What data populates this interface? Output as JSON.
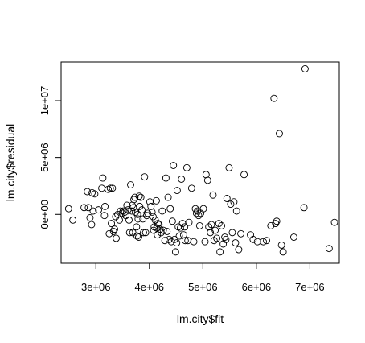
{
  "chart_data": {
    "type": "scatter",
    "xlabel": "lm.city$fit",
    "ylabel": "lm.city$residual",
    "xlim": [
      2350000,
      7550000
    ],
    "ylim": [
      -4300000,
      13400000
    ],
    "x_ticks": [
      3000000,
      4000000,
      5000000,
      6000000,
      7000000
    ],
    "x_tick_labels": [
      "3e+06",
      "4e+06",
      "5e+06",
      "6e+06",
      "7e+06"
    ],
    "y_ticks": [
      0,
      5000000,
      10000000
    ],
    "y_tick_labels": [
      "0e+00",
      "5e+06",
      "1e+07"
    ],
    "marker": "open-circle",
    "color": "#000000",
    "points": [
      [
        2490000,
        500000
      ],
      [
        2570000,
        -500000
      ],
      [
        2780000,
        600000
      ],
      [
        2840000,
        2000000
      ],
      [
        2860000,
        600000
      ],
      [
        2890000,
        -300000
      ],
      [
        2930000,
        1900000
      ],
      [
        2950000,
        300000
      ],
      [
        2980000,
        1800000
      ],
      [
        2920000,
        -900000
      ],
      [
        3050000,
        400000
      ],
      [
        3110000,
        2300000
      ],
      [
        3130000,
        3200000
      ],
      [
        3170000,
        700000
      ],
      [
        3160000,
        -100000
      ],
      [
        3230000,
        2200000
      ],
      [
        3250000,
        -1700000
      ],
      [
        3270000,
        2300000
      ],
      [
        3290000,
        -800000
      ],
      [
        3310000,
        2300000
      ],
      [
        3350000,
        -1300000
      ],
      [
        3370000,
        -200000
      ],
      [
        3330000,
        -1500000
      ],
      [
        3380000,
        -2100000
      ],
      [
        3410000,
        0
      ],
      [
        3440000,
        -500000
      ],
      [
        3460000,
        300000
      ],
      [
        3490000,
        100000
      ],
      [
        3510000,
        300000
      ],
      [
        3540000,
        200000
      ],
      [
        3560000,
        -100000
      ],
      [
        3580000,
        800000
      ],
      [
        3600000,
        400000
      ],
      [
        3620000,
        -500000
      ],
      [
        3630000,
        -1600000
      ],
      [
        3650000,
        2600000
      ],
      [
        3670000,
        300000
      ],
      [
        3680000,
        800000
      ],
      [
        3690000,
        -1600000
      ],
      [
        3700000,
        600000
      ],
      [
        3710000,
        1300000
      ],
      [
        3730000,
        1500000
      ],
      [
        3740000,
        200000
      ],
      [
        3760000,
        -1100000
      ],
      [
        3770000,
        -1900000
      ],
      [
        3780000,
        0
      ],
      [
        3790000,
        -400000
      ],
      [
        3800000,
        -2000000
      ],
      [
        3810000,
        1600000
      ],
      [
        3820000,
        700000
      ],
      [
        3840000,
        1500000
      ],
      [
        3860000,
        400000
      ],
      [
        3880000,
        -400000
      ],
      [
        3890000,
        -1600000
      ],
      [
        3910000,
        3300000
      ],
      [
        3930000,
        -1600000
      ],
      [
        3950000,
        -100000
      ],
      [
        3970000,
        100000
      ],
      [
        4010000,
        1100000
      ],
      [
        4030000,
        700000
      ],
      [
        4050000,
        200000
      ],
      [
        4070000,
        -200000
      ],
      [
        4080000,
        -1400000
      ],
      [
        4090000,
        -1100000
      ],
      [
        4110000,
        -500000
      ],
      [
        4130000,
        1200000
      ],
      [
        4140000,
        -1200000
      ],
      [
        4150000,
        -1800000
      ],
      [
        4160000,
        -800000
      ],
      [
        4180000,
        -900000
      ],
      [
        4200000,
        -1300000
      ],
      [
        4220000,
        -1600000
      ],
      [
        4240000,
        300000
      ],
      [
        4260000,
        -1400000
      ],
      [
        4290000,
        -2300000
      ],
      [
        4310000,
        3200000
      ],
      [
        4330000,
        -1500000
      ],
      [
        4350000,
        1500000
      ],
      [
        4370000,
        -2200000
      ],
      [
        4390000,
        500000
      ],
      [
        4410000,
        -2400000
      ],
      [
        4430000,
        -600000
      ],
      [
        4450000,
        4300000
      ],
      [
        4470000,
        -2200000
      ],
      [
        4490000,
        -3300000
      ],
      [
        4510000,
        -2500000
      ],
      [
        4520000,
        2100000
      ],
      [
        4540000,
        -1100000
      ],
      [
        4560000,
        -1900000
      ],
      [
        4580000,
        -1200000
      ],
      [
        4600000,
        3100000
      ],
      [
        4620000,
        -800000
      ],
      [
        4640000,
        -1800000
      ],
      [
        4660000,
        -1100000
      ],
      [
        4670000,
        -2300000
      ],
      [
        4700000,
        4100000
      ],
      [
        4720000,
        -2300000
      ],
      [
        4740000,
        -700000
      ],
      [
        4790000,
        2300000
      ],
      [
        4830000,
        -2400000
      ],
      [
        4860000,
        500000
      ],
      [
        4880000,
        100000
      ],
      [
        4900000,
        300000
      ],
      [
        4920000,
        -100000
      ],
      [
        4940000,
        -1000000
      ],
      [
        4960000,
        100000
      ],
      [
        5010000,
        500000
      ],
      [
        5040000,
        -2400000
      ],
      [
        5060000,
        3500000
      ],
      [
        5090000,
        3000000
      ],
      [
        5110000,
        -1100000
      ],
      [
        5140000,
        -1600000
      ],
      [
        5160000,
        -900000
      ],
      [
        5190000,
        1700000
      ],
      [
        5210000,
        -2300000
      ],
      [
        5230000,
        -1400000
      ],
      [
        5260000,
        -2100000
      ],
      [
        5300000,
        -800000
      ],
      [
        5320000,
        -3300000
      ],
      [
        5350000,
        -1000000
      ],
      [
        5380000,
        -2600000
      ],
      [
        5410000,
        -2000000
      ],
      [
        5430000,
        -2200000
      ],
      [
        5450000,
        1400000
      ],
      [
        5490000,
        4100000
      ],
      [
        5520000,
        900000
      ],
      [
        5550000,
        -1600000
      ],
      [
        5580000,
        1100000
      ],
      [
        5610000,
        -2500000
      ],
      [
        5630000,
        300000
      ],
      [
        5670000,
        -3100000
      ],
      [
        5710000,
        -1700000
      ],
      [
        5770000,
        3500000
      ],
      [
        5890000,
        -1800000
      ],
      [
        5940000,
        -2200000
      ],
      [
        6020000,
        -2400000
      ],
      [
        6130000,
        -2400000
      ],
      [
        6190000,
        -2300000
      ],
      [
        6270000,
        -1000000
      ],
      [
        6330000,
        10200000
      ],
      [
        6360000,
        -800000
      ],
      [
        6380000,
        -600000
      ],
      [
        6430000,
        7100000
      ],
      [
        6470000,
        -2700000
      ],
      [
        6500000,
        -3300000
      ],
      [
        6700000,
        -2000000
      ],
      [
        6890000,
        600000
      ],
      [
        6910000,
        12800000
      ],
      [
        7360000,
        -3000000
      ],
      [
        7460000,
        -700000
      ]
    ]
  }
}
